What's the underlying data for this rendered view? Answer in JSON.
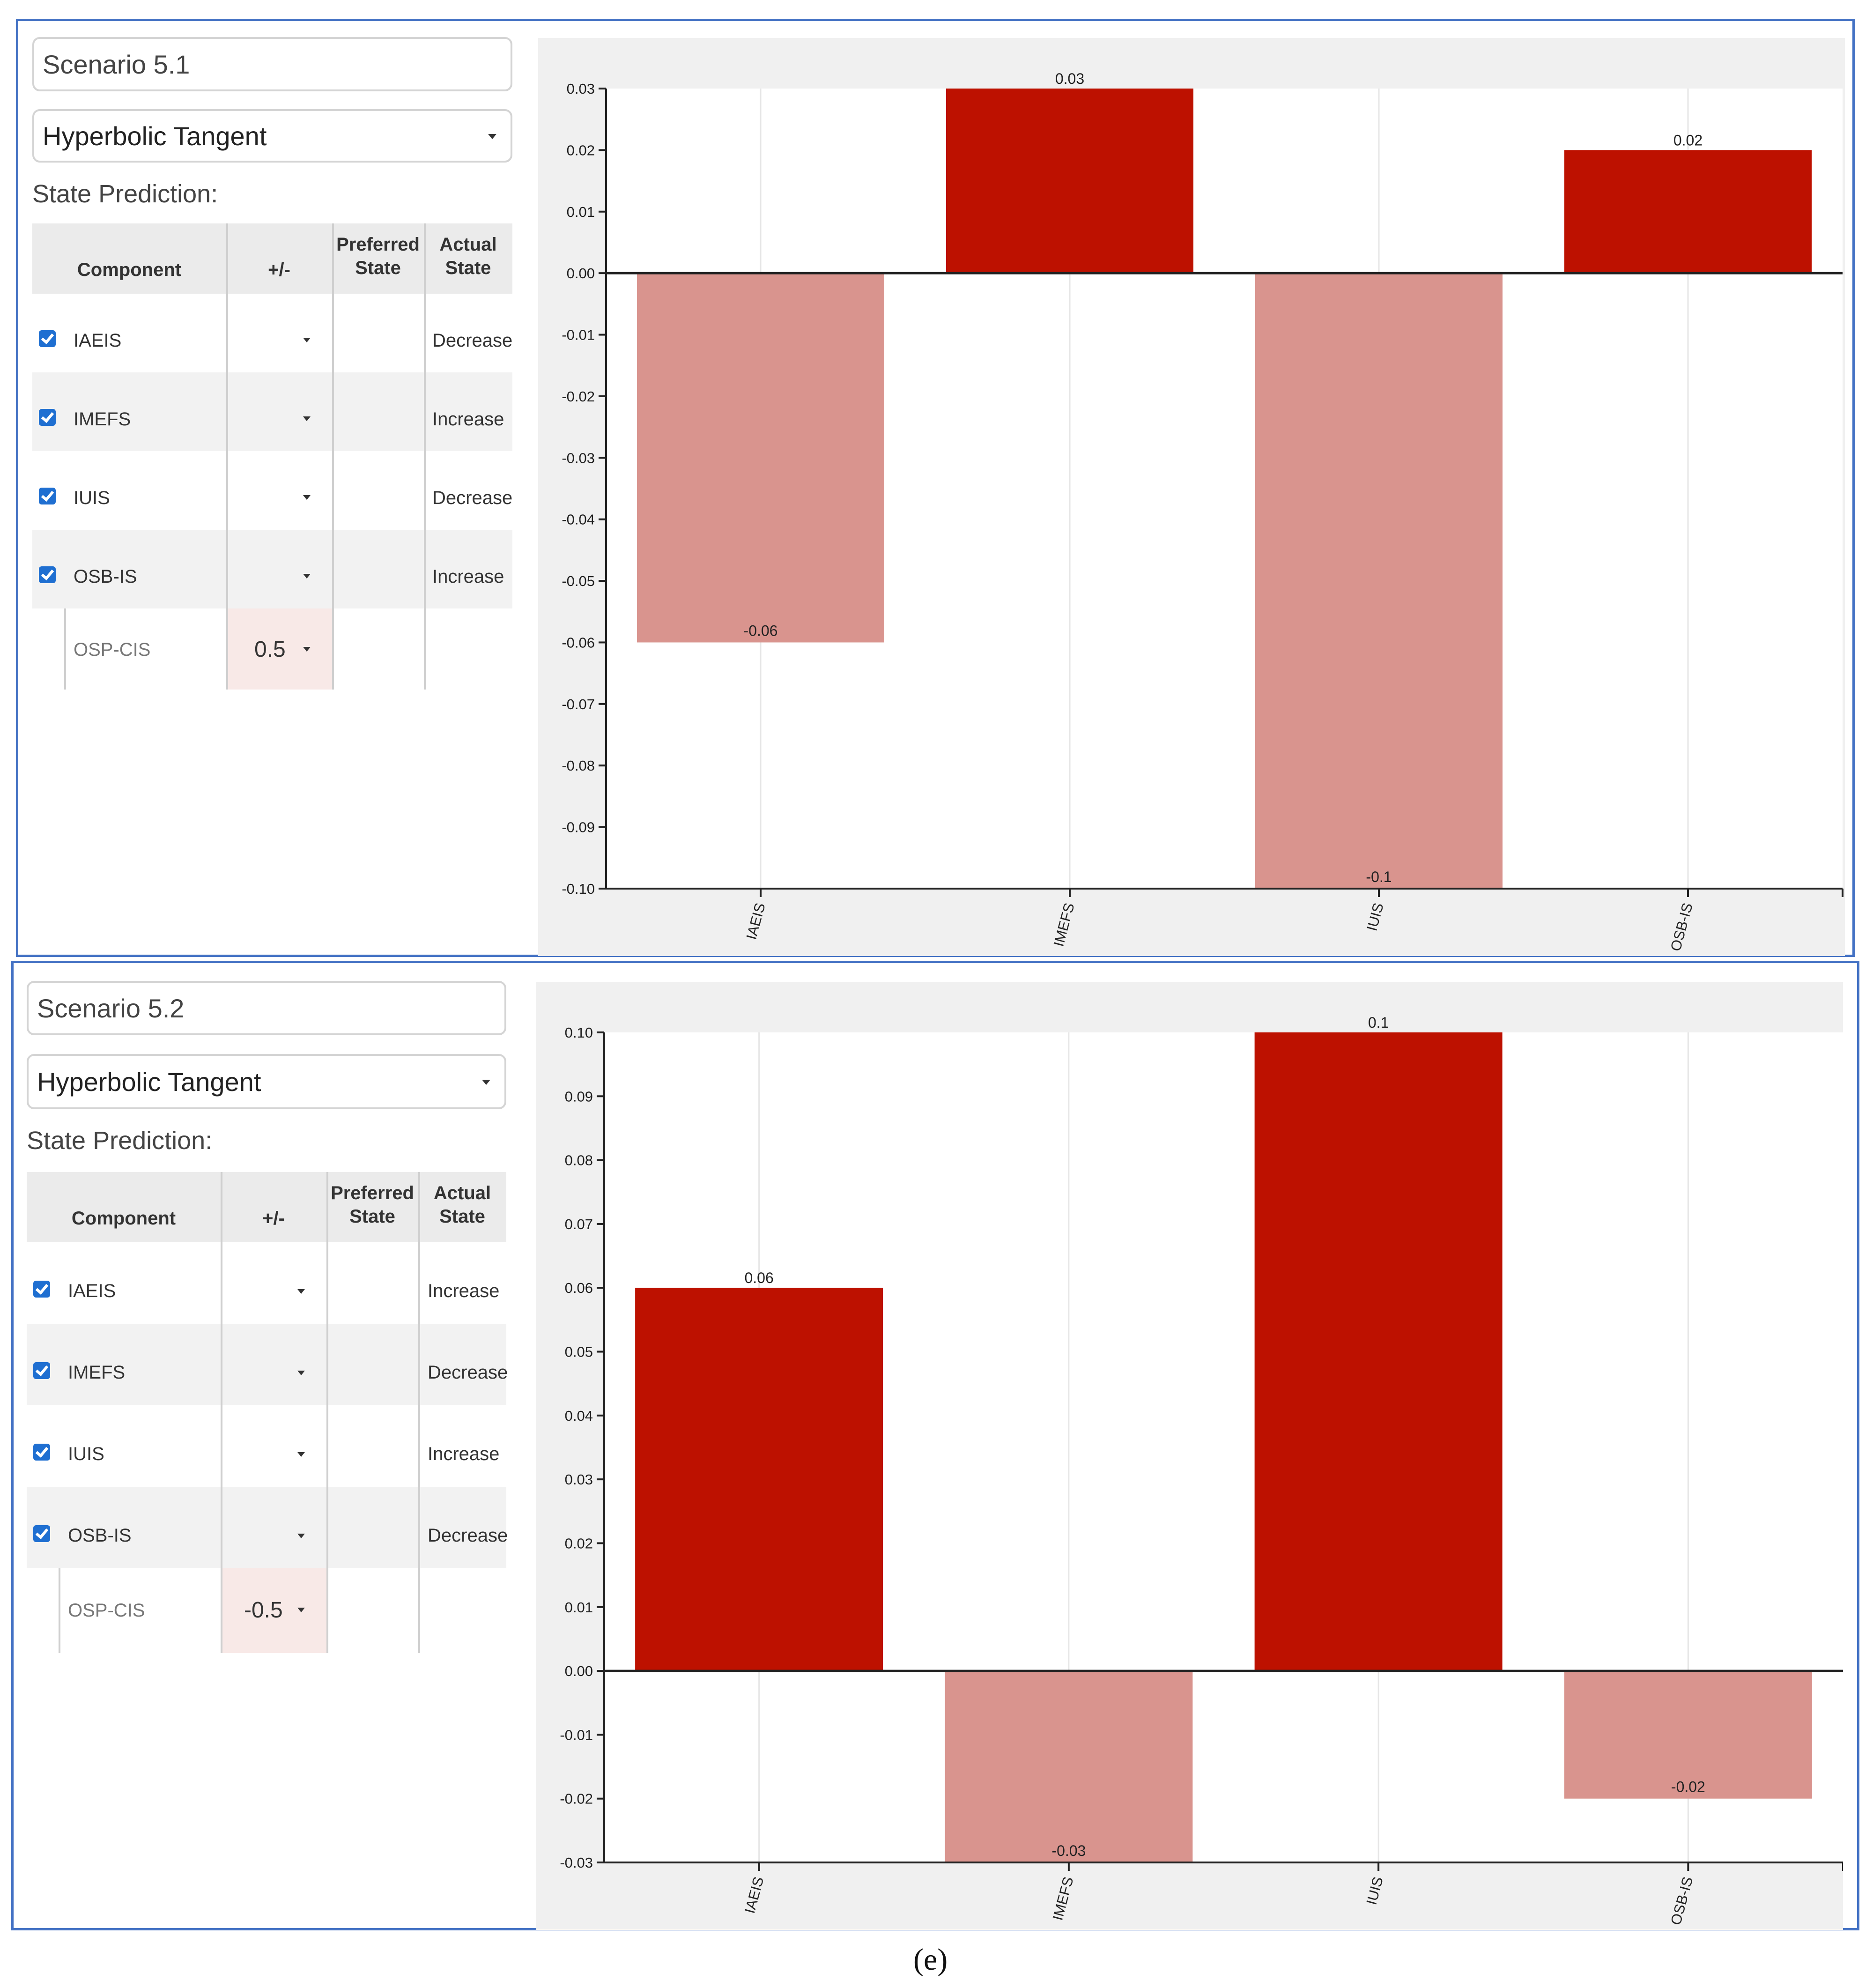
{
  "caption": "(e)",
  "colors": {
    "positive_bar": "#bd1100",
    "negative_bar": "#d9948e",
    "panel_border": "#4472c4",
    "checkbox": "#1f6fd1"
  },
  "scenarios": [
    {
      "name": "Scenario 5.1",
      "activation_function": "Hyperbolic Tangent",
      "state_prediction_label": "State Prediction:",
      "table": {
        "headers": {
          "component": "Component",
          "sign": "+/-",
          "preferred_1": "Preferred",
          "preferred_2": "State",
          "actual_1": "Actual",
          "actual_2": "State"
        },
        "rows": [
          {
            "checked": true,
            "component": "IAEIS",
            "actual_state": "Decrease"
          },
          {
            "checked": true,
            "component": "IMEFS",
            "actual_state": "Increase"
          },
          {
            "checked": true,
            "component": "IUIS",
            "actual_state": "Decrease"
          },
          {
            "checked": true,
            "component": "OSB-IS",
            "actual_state": "Increase"
          }
        ],
        "input_row": {
          "component": "OSP-CIS",
          "weight": "0.5"
        }
      },
      "chart_data": {
        "type": "bar",
        "categories": [
          "IAEIS",
          "IMEFS",
          "IUIS",
          "OSB-IS"
        ],
        "values": [
          -0.06,
          0.03,
          -0.1,
          0.02
        ],
        "value_labels": [
          "-0.06",
          "0.03",
          "-0.1",
          "0.02"
        ],
        "ylim": [
          -0.1,
          0.03
        ],
        "yticks": [
          "0.03",
          "0.02",
          "0.01",
          "0.00",
          "-0.01",
          "-0.02",
          "-0.03",
          "-0.04",
          "-0.05",
          "-0.06",
          "-0.07",
          "-0.08",
          "-0.09",
          "-0.10"
        ],
        "title": "",
        "xlabel": "",
        "ylabel": "",
        "grid": true
      }
    },
    {
      "name": "Scenario 5.2",
      "activation_function": "Hyperbolic Tangent",
      "state_prediction_label": "State Prediction:",
      "table": {
        "headers": {
          "component": "Component",
          "sign": "+/-",
          "preferred_1": "Preferred",
          "preferred_2": "State",
          "actual_1": "Actual",
          "actual_2": "State"
        },
        "rows": [
          {
            "checked": true,
            "component": "IAEIS",
            "actual_state": "Increase"
          },
          {
            "checked": true,
            "component": "IMEFS",
            "actual_state": "Decrease"
          },
          {
            "checked": true,
            "component": "IUIS",
            "actual_state": "Increase"
          },
          {
            "checked": true,
            "component": "OSB-IS",
            "actual_state": "Decrease"
          }
        ],
        "input_row": {
          "component": "OSP-CIS",
          "weight": "-0.5"
        }
      },
      "chart_data": {
        "type": "bar",
        "categories": [
          "IAEIS",
          "IMEFS",
          "IUIS",
          "OSB-IS"
        ],
        "values": [
          0.06,
          -0.03,
          0.1,
          -0.02
        ],
        "value_labels": [
          "0.06",
          "-0.03",
          "0.1",
          "-0.02"
        ],
        "ylim": [
          -0.03,
          0.1
        ],
        "yticks": [
          "0.10",
          "0.09",
          "0.08",
          "0.07",
          "0.06",
          "0.05",
          "0.04",
          "0.03",
          "0.02",
          "0.01",
          "0.00",
          "-0.01",
          "-0.02",
          "-0.03"
        ],
        "title": "",
        "xlabel": "",
        "ylabel": "",
        "grid": true
      }
    }
  ]
}
